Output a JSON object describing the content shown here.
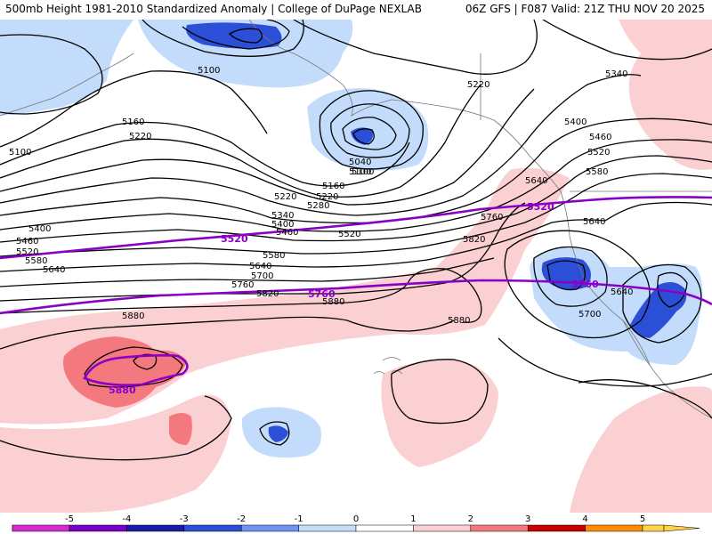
{
  "header": {
    "title": "500mb Height 1981-2010 Standardized Anomaly | College of DuPage NEXLAB",
    "run_info": "06Z GFS | F087 Valid: 21Z THU NOV 20 2025"
  },
  "legend": {
    "ticks": [
      "-5",
      "-4",
      "-3",
      "-2",
      "-1",
      "0",
      "1",
      "2",
      "3",
      "4",
      "5"
    ],
    "colors": [
      "#d42ad4",
      "#7a00c8",
      "#1a1aa6",
      "#2b4fd6",
      "#6f93f0",
      "#c4dcfb",
      "#ffffff",
      "#fbd0d3",
      "#f4797f",
      "#c80000",
      "#ff8c00",
      "#ffd24a"
    ]
  },
  "height_labels": [
    "5100",
    "5160",
    "5220",
    "5040",
    "5100",
    "5160",
    "5220",
    "5280",
    "5340",
    "5400",
    "5460",
    "5520",
    "5580",
    "5640",
    "5700",
    "5760",
    "5820",
    "5880",
    "5100",
    "5220",
    "5400",
    "5460",
    "5520",
    "5580",
    "5640",
    "5340",
    "5220",
    "5100",
    "5760",
    "5820",
    "5880",
    "5880",
    "5640",
    "5700",
    "5640",
    "5400",
    "5460",
    "5520",
    "5580",
    "5640"
  ],
  "climo_labels": [
    "5520",
    "5520",
    "5760",
    "5760",
    "5880"
  ],
  "colors": {
    "negative_light": "#c4dcfb",
    "negative_mid": "#6f93f0",
    "negative_strong": "#2b4fd6",
    "positive_light": "#fbd0d3",
    "positive_mid": "#f4797f",
    "contour": "#000000",
    "climo_contour": "#8a00c8",
    "coastline": "#777777"
  }
}
